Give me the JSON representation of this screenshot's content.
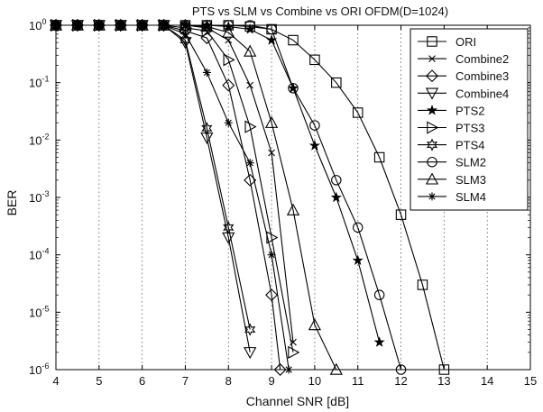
{
  "chart_data": {
    "type": "line",
    "title": "PTS vs SLM vs Combine vs ORI OFDM(D=1024)",
    "xlabel": "Channel SNR [dB]",
    "ylabel": "BER",
    "xlim": [
      4,
      15
    ],
    "ylim": [
      1e-06,
      1
    ],
    "yscale": "log",
    "grid": "vertical dotted",
    "legend_position": "top-right",
    "x_ticks": [
      "4",
      "5",
      "6",
      "7",
      "8",
      "9",
      "10",
      "11",
      "12",
      "13",
      "14",
      "15"
    ],
    "y_ticks": [
      {
        "base": "10",
        "exp": "0",
        "value": 1
      },
      {
        "base": "10",
        "exp": "-1",
        "value": 0.1
      },
      {
        "base": "10",
        "exp": "-2",
        "value": 0.01
      },
      {
        "base": "10",
        "exp": "-3",
        "value": 0.001
      },
      {
        "base": "10",
        "exp": "-4",
        "value": 0.0001
      },
      {
        "base": "10",
        "exp": "-5",
        "value": 1e-05
      },
      {
        "base": "10",
        "exp": "-6",
        "value": 1e-06
      }
    ],
    "series": [
      {
        "name": "ORI",
        "marker": "square",
        "x": [
          4,
          4.5,
          5,
          5.5,
          6,
          6.5,
          7,
          7.5,
          8,
          8.5,
          9,
          9.5,
          10,
          10.5,
          11,
          11.5,
          12,
          12.5,
          13
        ],
        "y": [
          1,
          1,
          1,
          1,
          1,
          1,
          1,
          1,
          1,
          0.95,
          0.85,
          0.55,
          0.25,
          0.1,
          0.03,
          0.005,
          0.0005,
          3e-05,
          1e-06
        ]
      },
      {
        "name": "Combine2",
        "marker": "x",
        "x": [
          4,
          4.5,
          5,
          5.5,
          6,
          6.5,
          7,
          7.5,
          8,
          8.5,
          9,
          9.5
        ],
        "y": [
          1,
          1,
          1,
          1,
          1,
          1,
          1,
          0.9,
          0.55,
          0.09,
          0.006,
          3e-06
        ]
      },
      {
        "name": "Combine3",
        "marker": "diamond",
        "x": [
          4,
          4.5,
          5,
          5.5,
          6,
          6.5,
          7,
          7.5,
          8,
          8.5,
          9,
          9.2
        ],
        "y": [
          1,
          1,
          1,
          1,
          1,
          1,
          0.8,
          0.6,
          0.09,
          0.002,
          2e-05,
          1e-06
        ]
      },
      {
        "name": "Combine4",
        "marker": "triangle-down",
        "x": [
          4,
          4.5,
          5,
          5.5,
          6,
          6.5,
          7,
          7.5,
          8,
          8.5
        ],
        "y": [
          1,
          1,
          1,
          1,
          1,
          1,
          0.5,
          0.011,
          0.0002,
          2e-06
        ]
      },
      {
        "name": "PTS2",
        "marker": "star",
        "x": [
          4,
          4.5,
          5,
          5.5,
          6,
          6.5,
          7,
          7.5,
          8,
          8.5,
          9,
          9.5,
          10,
          10.5,
          11,
          11.5
        ],
        "y": [
          1,
          1,
          1,
          1,
          1,
          1,
          1,
          1,
          0.95,
          0.85,
          0.55,
          0.08,
          0.008,
          0.001,
          8e-05,
          3e-06
        ]
      },
      {
        "name": "PTS3",
        "marker": "triangle-right",
        "x": [
          4,
          4.5,
          5,
          5.5,
          6,
          6.5,
          7,
          7.5,
          8,
          8.5,
          9,
          9.5
        ],
        "y": [
          1,
          1,
          1,
          1,
          1,
          1,
          0.9,
          0.8,
          0.25,
          0.017,
          0.0002,
          2e-06
        ]
      },
      {
        "name": "PTS4",
        "marker": "hexagram",
        "x": [
          4,
          4.5,
          5,
          5.5,
          6,
          6.5,
          7,
          7.5,
          8,
          8.5
        ],
        "y": [
          1,
          1,
          1,
          1,
          1,
          1,
          0.55,
          0.016,
          0.0003,
          5e-06
        ]
      },
      {
        "name": "SLM2",
        "marker": "circle",
        "x": [
          4,
          4.5,
          5,
          5.5,
          6,
          6.5,
          7,
          7.5,
          8,
          8.5,
          9,
          9.5,
          10,
          10.5,
          11,
          11.5,
          12
        ],
        "y": [
          1,
          1,
          1,
          1,
          1,
          1,
          1,
          1,
          1,
          1,
          0.85,
          0.08,
          0.018,
          0.002,
          0.0003,
          2e-05,
          1e-06
        ]
      },
      {
        "name": "SLM3",
        "marker": "triangle-up",
        "x": [
          4,
          4.5,
          5,
          5.5,
          6,
          6.5,
          7,
          7.5,
          8,
          8.5,
          9,
          9.5,
          10,
          10.5
        ],
        "y": [
          1,
          1,
          1,
          1,
          1,
          1,
          1,
          0.95,
          0.75,
          0.35,
          0.02,
          0.0006,
          6e-06,
          1e-06
        ]
      },
      {
        "name": "SLM4",
        "marker": "asterisk",
        "x": [
          4,
          4.5,
          5,
          5.5,
          6,
          6.5,
          7,
          7.5,
          8,
          8.5,
          9,
          9.4
        ],
        "y": [
          1,
          1,
          1,
          1,
          1,
          1,
          0.7,
          0.15,
          0.02,
          0.004,
          0.0001,
          1e-06
        ]
      }
    ]
  }
}
